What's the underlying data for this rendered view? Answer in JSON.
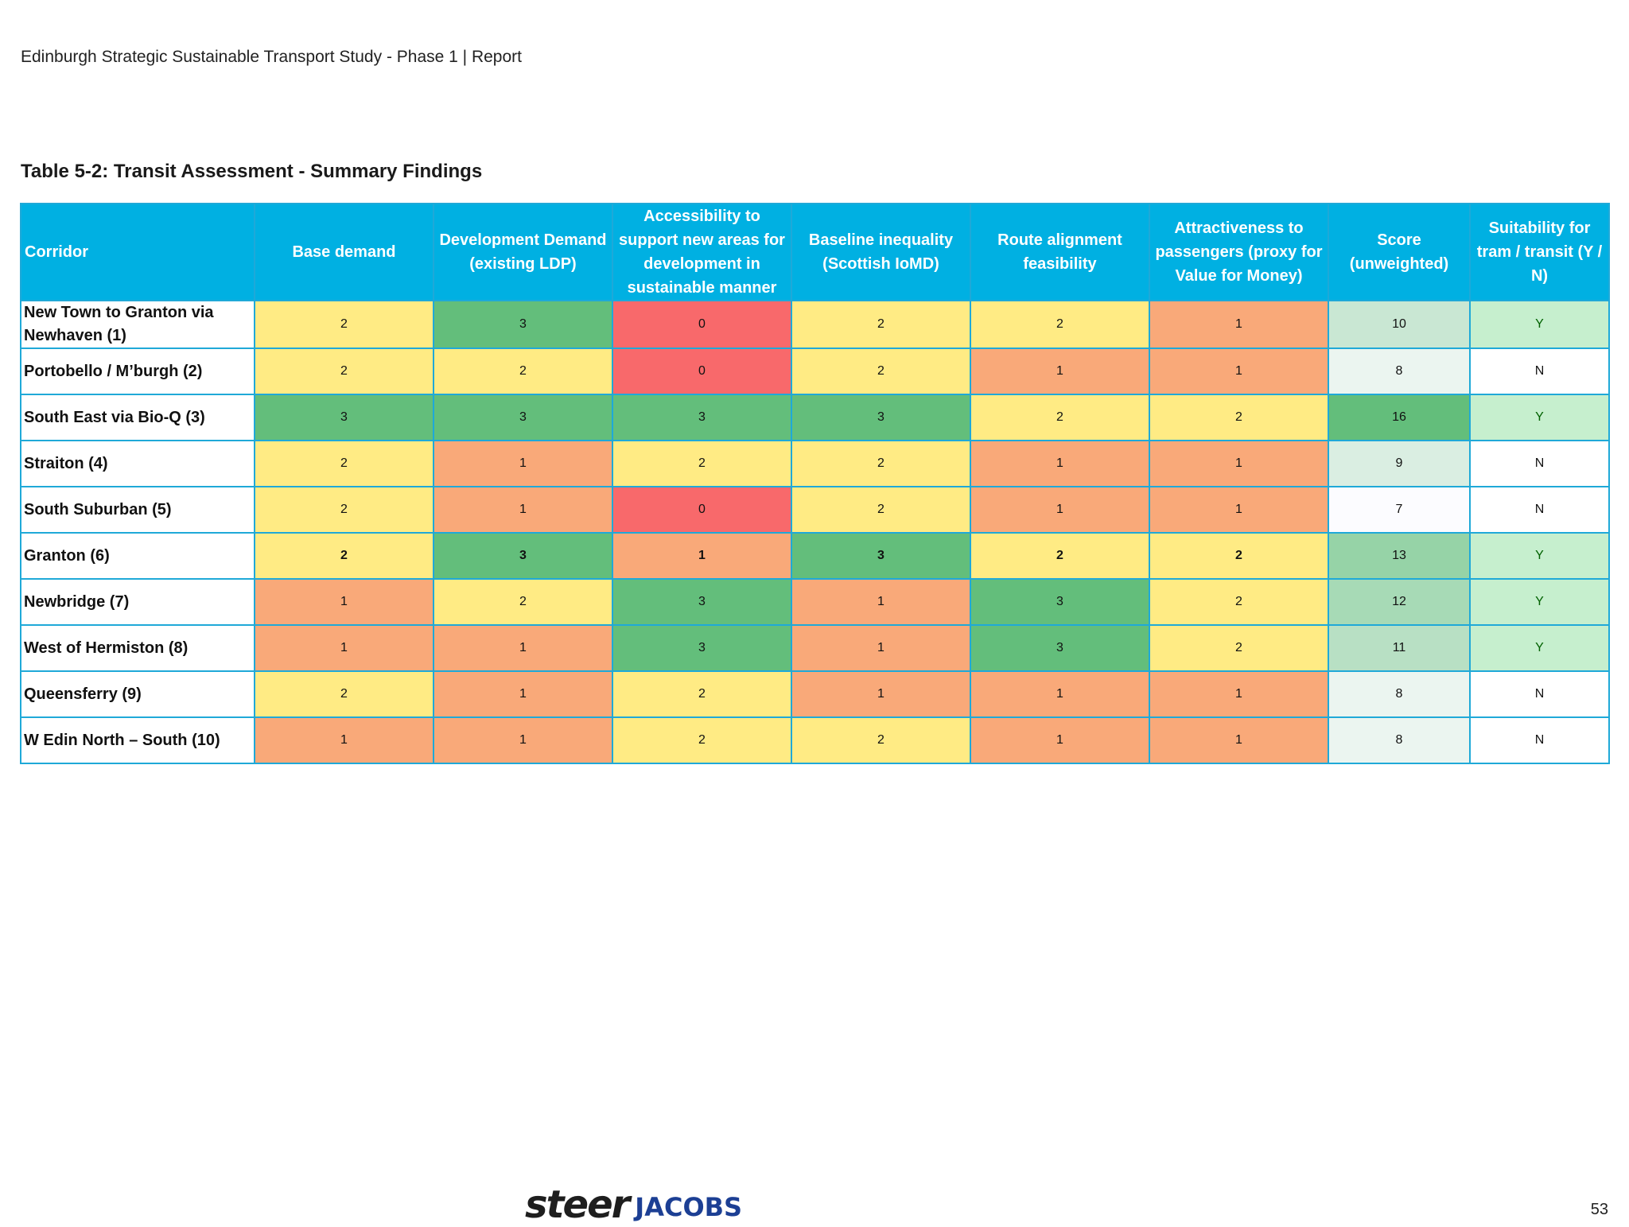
{
  "header": {
    "running_title": "Edinburgh Strategic Sustainable Transport Study - Phase 1 | Report"
  },
  "table": {
    "caption": "Table 5-2: Transit Assessment - Summary Findings",
    "columns": [
      "Corridor",
      "Base demand",
      "Development Demand (existing LDP)",
      "Accessibility to support new areas for development in sustainable manner",
      "Baseline inequality (Scottish IoMD)",
      "Route alignment feasibility",
      "Attractiveness to passengers (proxy for Value for Money)",
      "Score (unweighted)",
      "Suitability for tram / transit (Y / N)"
    ],
    "rows": [
      {
        "corridor": "New Town to Granton via Newhaven (1)",
        "values": [
          "2",
          "3",
          "0",
          "2",
          "2",
          "1"
        ],
        "score": "10",
        "suitability": "Y"
      },
      {
        "corridor": "Portobello / M’burgh (2)",
        "values": [
          "2",
          "2",
          "0",
          "2",
          "1",
          "1"
        ],
        "score": "8",
        "suitability": "N"
      },
      {
        "corridor": "South East via Bio-Q (3)",
        "values": [
          "3",
          "3",
          "3",
          "3",
          "2",
          "2"
        ],
        "score": "16",
        "suitability": "Y"
      },
      {
        "corridor": "Straiton (4)",
        "values": [
          "2",
          "1",
          "2",
          "2",
          "1",
          "1"
        ],
        "score": "9",
        "suitability": "N"
      },
      {
        "corridor": "South Suburban (5)",
        "values": [
          "2",
          "1",
          "0",
          "2",
          "1",
          "1"
        ],
        "score": "7",
        "suitability": "N"
      },
      {
        "corridor": "Granton (6)",
        "values": [
          "2",
          "3",
          "1",
          "3",
          "2",
          "2"
        ],
        "score": "13",
        "suitability": "Y"
      },
      {
        "corridor": "Newbridge (7)",
        "values": [
          "1",
          "2",
          "3",
          "1",
          "3",
          "2"
        ],
        "score": "12",
        "suitability": "Y"
      },
      {
        "corridor": "West of Hermiston (8)",
        "values": [
          "1",
          "1",
          "3",
          "1",
          "3",
          "2"
        ],
        "score": "11",
        "suitability": "Y"
      },
      {
        "corridor": "Queensferry (9)",
        "values": [
          "2",
          "1",
          "2",
          "1",
          "1",
          "1"
        ],
        "score": "8",
        "suitability": "N"
      },
      {
        "corridor": "W Edin North – South (10)",
        "values": [
          "1",
          "1",
          "2",
          "2",
          "1",
          "1"
        ],
        "score": "8",
        "suitability": "N"
      }
    ]
  },
  "colors": {
    "header_bg": "#00b0e2",
    "score_0": "#f8696b",
    "score_1": "#f9a979",
    "score_2": "#ffeb84",
    "score_3": "#63be7b",
    "suitable_bg": "#c6efce",
    "suitable_text": "#006100",
    "not_suitable_bg": "#ffffff"
  },
  "footer": {
    "logo_steer": "steer",
    "logo_jacobs": "JACOBS",
    "page_number": "53"
  }
}
